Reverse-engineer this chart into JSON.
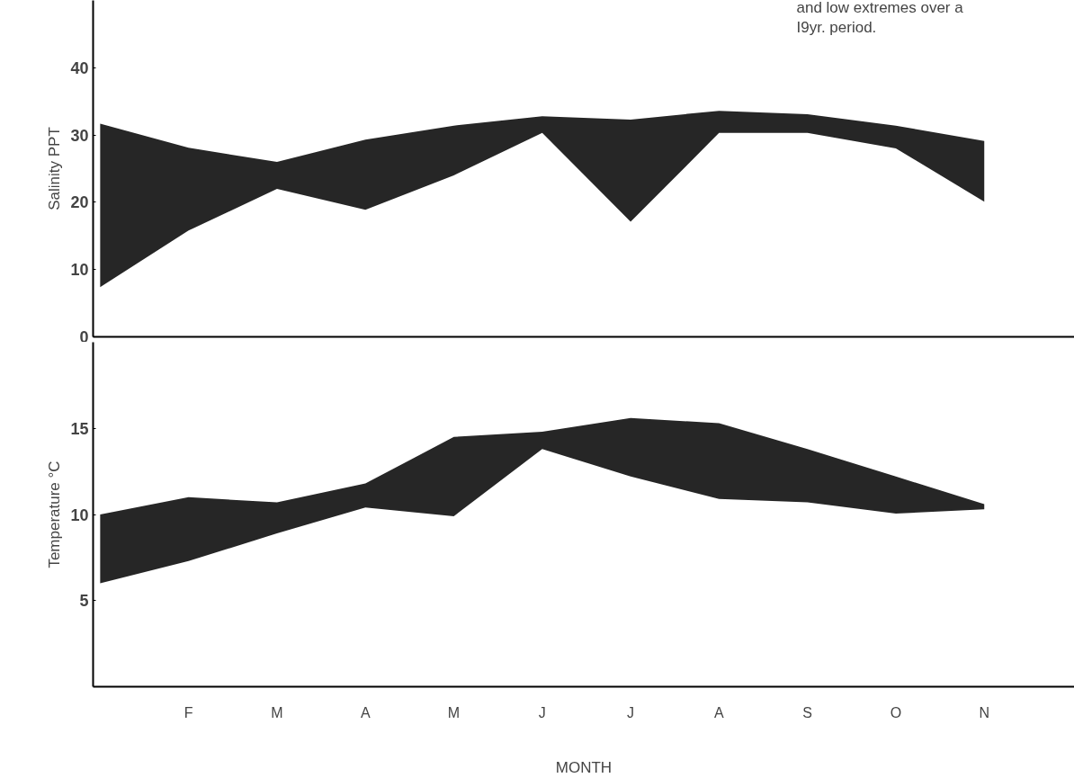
{
  "chart_data": [
    {
      "type": "area",
      "ylabel": "Salinity PPT",
      "categories": [
        null,
        null,
        null,
        null,
        null,
        null,
        null,
        null,
        null,
        null,
        null
      ],
      "ylim": [
        0,
        50
      ],
      "yticks": [
        0,
        10,
        20,
        30,
        40
      ],
      "tick_labels": "y",
      "annotations": [
        "and low extremes over a",
        "I9yr. period."
      ],
      "series": [
        {
          "color": "#000000",
          "values": [
            null,
            null,
            null,
            null,
            null,
            null,
            null,
            null,
            null,
            null,
            null
          ],
          "upper": [
            31.7,
            28.1,
            26.0,
            29.3,
            31.4,
            32.8,
            32.3,
            33.6,
            33.1,
            31.4,
            29.1
          ],
          "lower": [
            7.4,
            15.8,
            22.0,
            18.9,
            24.0,
            30.3,
            17.1,
            30.3,
            30.3,
            28.0,
            20.1
          ]
        }
      ]
    },
    {
      "type": "area",
      "ylabel": "Temperature °C",
      "xlabel": "MONTH",
      "categories": [
        null,
        "F",
        "M",
        "A",
        "M",
        "J",
        "J",
        "A",
        "S",
        "O",
        "N"
      ],
      "ylim": [
        0,
        20
      ],
      "yticks": [
        5,
        10,
        15
      ],
      "series": [
        {
          "color": "#000000",
          "values": [
            null,
            null,
            null,
            null,
            null,
            null,
            null,
            null,
            null,
            null,
            null
          ],
          "upper": [
            10.0,
            11.0,
            10.7,
            11.8,
            14.5,
            14.8,
            15.6,
            15.3,
            13.8,
            12.2,
            10.6
          ],
          "lower": [
            6.0,
            7.3,
            8.9,
            10.4,
            9.9,
            13.8,
            12.2,
            10.9,
            10.7,
            10.05,
            10.3
          ]
        }
      ]
    }
  ]
}
